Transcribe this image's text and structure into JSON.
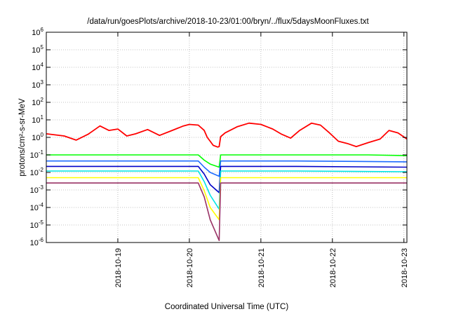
{
  "chart_data": {
    "type": "line",
    "title": "/data/run/goesPlots/archive/2018-10-23/01:00/bryn/../flux/5daysMoonFluxes.txt",
    "xlabel": "Coordinated Universal Time (UTC)",
    "ylabel": "protons/cm²-s-sr-MeV",
    "yscale": "log",
    "ylim": [
      1e-06,
      1000000.0
    ],
    "ytick_exponents": [
      -6,
      -5,
      -4,
      -3,
      -2,
      -1,
      0,
      1,
      2,
      3,
      4,
      5,
      6
    ],
    "xlim": [
      "2018-10-18T00:00",
      "2018-10-23T01:00"
    ],
    "xticks": [
      {
        "label": "2018-10-19",
        "value": "2018-10-19T00:00"
      },
      {
        "label": "2018-10-20",
        "value": "2018-10-20T00:00"
      },
      {
        "label": "2018-10-21",
        "value": "2018-10-21T00:00"
      },
      {
        "label": "2018-10-22",
        "value": "2018-10-22T00:00"
      },
      {
        "label": "2018-10-23",
        "value": "2018-10-23T00:00"
      }
    ],
    "grid": true,
    "data_gap": [
      "2018-10-20T07:00",
      "2018-10-20T08:00"
    ],
    "series": [
      {
        "color": "#ff0000",
        "points": [
          [
            "2018-10-18T00:00",
            1.6
          ],
          [
            "2018-10-18T06:00",
            1.2
          ],
          [
            "2018-10-18T10:00",
            0.7
          ],
          [
            "2018-10-18T14:00",
            1.5
          ],
          [
            "2018-10-18T18:00",
            4.5
          ],
          [
            "2018-10-18T21:00",
            2.5
          ],
          [
            "2018-10-19T00:00",
            3.0
          ],
          [
            "2018-10-19T03:00",
            1.2
          ],
          [
            "2018-10-19T06:00",
            1.6
          ],
          [
            "2018-10-19T10:00",
            2.8
          ],
          [
            "2018-10-19T14:00",
            1.3
          ],
          [
            "2018-10-19T18:00",
            2.4
          ],
          [
            "2018-10-19T22:00",
            4.5
          ],
          [
            "2018-10-20T00:00",
            5.5
          ],
          [
            "2018-10-20T03:00",
            5.0
          ],
          [
            "2018-10-20T05:00",
            2.5
          ],
          [
            "2018-10-20T06:00",
            1.0
          ],
          [
            "2018-10-20T07:00",
            0.6
          ],
          [
            "2018-10-20T08:00",
            0.35
          ],
          [
            "2018-10-20T09:30",
            0.28
          ],
          [
            "2018-10-20T10:00",
            0.3
          ],
          [
            "2018-10-20T10:30",
            1.1
          ],
          [
            "2018-10-20T12:00",
            1.8
          ],
          [
            "2018-10-20T16:00",
            4.0
          ],
          [
            "2018-10-20T20:00",
            6.5
          ],
          [
            "2018-10-21T00:00",
            5.5
          ],
          [
            "2018-10-21T04:00",
            3.0
          ],
          [
            "2018-10-21T07:00",
            1.5
          ],
          [
            "2018-10-21T10:00",
            0.9
          ],
          [
            "2018-10-21T13:00",
            2.5
          ],
          [
            "2018-10-21T17:00",
            6.5
          ],
          [
            "2018-10-21T20:00",
            5.0
          ],
          [
            "2018-10-21T23:00",
            1.8
          ],
          [
            "2018-10-22T02:00",
            0.6
          ],
          [
            "2018-10-22T05:00",
            0.45
          ],
          [
            "2018-10-22T08:00",
            0.3
          ],
          [
            "2018-10-22T12:00",
            0.5
          ],
          [
            "2018-10-22T16:00",
            0.8
          ],
          [
            "2018-10-22T19:00",
            2.5
          ],
          [
            "2018-10-22T22:00",
            1.8
          ],
          [
            "2018-10-23T01:00",
            0.8
          ]
        ]
      },
      {
        "color": "#00ff00",
        "points": [
          [
            "2018-10-18T00:00",
            0.1
          ],
          [
            "2018-10-18T12:00",
            0.1
          ],
          [
            "2018-10-19T00:00",
            0.1
          ],
          [
            "2018-10-19T12:00",
            0.1
          ],
          [
            "2018-10-20T00:00",
            0.1
          ],
          [
            "2018-10-20T03:00",
            0.1
          ],
          [
            "2018-10-20T05:00",
            0.05
          ],
          [
            "2018-10-20T07:00",
            0.03
          ],
          [
            "2018-10-20T10:00",
            0.02
          ],
          [
            "2018-10-20T10:30",
            0.1
          ],
          [
            "2018-10-21T00:00",
            0.1
          ],
          [
            "2018-10-21T12:00",
            0.1
          ],
          [
            "2018-10-22T00:00",
            0.1
          ],
          [
            "2018-10-22T12:00",
            0.1
          ],
          [
            "2018-10-23T01:00",
            0.09
          ]
        ]
      },
      {
        "color": "#1e6bff",
        "points": [
          [
            "2018-10-18T00:00",
            0.045
          ],
          [
            "2018-10-19T00:00",
            0.045
          ],
          [
            "2018-10-20T03:00",
            0.045
          ],
          [
            "2018-10-20T05:00",
            0.02
          ],
          [
            "2018-10-20T07:00",
            0.01
          ],
          [
            "2018-10-20T10:00",
            0.006
          ],
          [
            "2018-10-20T10:30",
            0.045
          ],
          [
            "2018-10-21T12:00",
            0.045
          ],
          [
            "2018-10-23T01:00",
            0.04
          ]
        ]
      },
      {
        "color": "#0000c8",
        "points": [
          [
            "2018-10-18T00:00",
            0.022
          ],
          [
            "2018-10-19T00:00",
            0.022
          ],
          [
            "2018-10-20T03:00",
            0.022
          ],
          [
            "2018-10-20T05:00",
            0.008
          ],
          [
            "2018-10-20T07:00",
            0.002
          ],
          [
            "2018-10-20T10:00",
            0.0007
          ],
          [
            "2018-10-20T10:30",
            0.022
          ],
          [
            "2018-10-21T12:00",
            0.022
          ],
          [
            "2018-10-23T01:00",
            0.02
          ]
        ]
      },
      {
        "color": "#00e5e5",
        "points": [
          [
            "2018-10-18T00:00",
            0.012
          ],
          [
            "2018-10-19T00:00",
            0.012
          ],
          [
            "2018-10-20T03:00",
            0.012
          ],
          [
            "2018-10-20T05:00",
            0.003
          ],
          [
            "2018-10-20T07:00",
            0.0005
          ],
          [
            "2018-10-20T10:00",
            8e-05
          ],
          [
            "2018-10-20T10:30",
            0.012
          ],
          [
            "2018-10-21T12:00",
            0.012
          ],
          [
            "2018-10-23T01:00",
            0.011
          ]
        ]
      },
      {
        "color": "#ffff00",
        "points": [
          [
            "2018-10-18T00:00",
            0.005
          ],
          [
            "2018-10-19T00:00",
            0.005
          ],
          [
            "2018-10-20T03:00",
            0.005
          ],
          [
            "2018-10-20T05:00",
            0.0009
          ],
          [
            "2018-10-20T07:00",
            0.0001
          ],
          [
            "2018-10-20T10:00",
            2e-05
          ],
          [
            "2018-10-20T10:30",
            0.005
          ],
          [
            "2018-10-21T12:00",
            0.005
          ],
          [
            "2018-10-23T01:00",
            0.005
          ]
        ]
      },
      {
        "color": "#993366",
        "points": [
          [
            "2018-10-18T00:00",
            0.0025
          ],
          [
            "2018-10-19T00:00",
            0.0025
          ],
          [
            "2018-10-20T03:00",
            0.0025
          ],
          [
            "2018-10-20T05:00",
            0.0004
          ],
          [
            "2018-10-20T07:00",
            2e-05
          ],
          [
            "2018-10-20T10:00",
            1.3e-06
          ],
          [
            "2018-10-20T10:30",
            0.0025
          ],
          [
            "2018-10-21T12:00",
            0.0025
          ],
          [
            "2018-10-23T01:00",
            0.0025
          ]
        ]
      }
    ]
  }
}
